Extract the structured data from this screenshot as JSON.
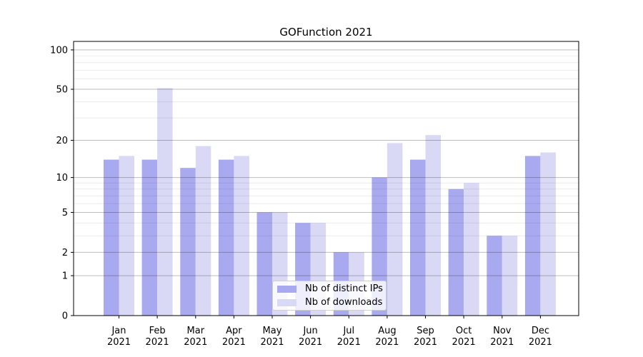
{
  "chart_data": {
    "type": "bar",
    "title": "GOFunction 2021",
    "categories": [
      {
        "month": "Jan",
        "year": "2021"
      },
      {
        "month": "Feb",
        "year": "2021"
      },
      {
        "month": "Mar",
        "year": "2021"
      },
      {
        "month": "Apr",
        "year": "2021"
      },
      {
        "month": "May",
        "year": "2021"
      },
      {
        "month": "Jun",
        "year": "2021"
      },
      {
        "month": "Jul",
        "year": "2021"
      },
      {
        "month": "Aug",
        "year": "2021"
      },
      {
        "month": "Sep",
        "year": "2021"
      },
      {
        "month": "Oct",
        "year": "2021"
      },
      {
        "month": "Nov",
        "year": "2021"
      },
      {
        "month": "Dec",
        "year": "2021"
      }
    ],
    "series": [
      {
        "name": "Nb of distinct IPs",
        "color": "#a9a9ef",
        "values": [
          14,
          14,
          12,
          14,
          5,
          4,
          2,
          10,
          14,
          8,
          3,
          15
        ]
      },
      {
        "name": "Nb of downloads",
        "color": "#d9d9f6",
        "values": [
          15,
          51,
          18,
          15,
          5,
          4,
          2,
          19,
          22,
          9,
          3,
          16
        ]
      }
    ],
    "y_scale": "log1p",
    "y_ticks": [
      0,
      1,
      2,
      5,
      10,
      20,
      50,
      100
    ],
    "y_minor_ticks": [
      3,
      4,
      6,
      7,
      8,
      9,
      30,
      40,
      60,
      70,
      80,
      90
    ],
    "ylim": [
      0,
      116
    ],
    "grid": "horizontal",
    "legend_position": "lower-center",
    "colors": {
      "background": "#ffffff",
      "axis": "#000000",
      "major_grid": "rgba(0,0,0,0.26)",
      "minor_grid": "rgba(0,0,0,0.08)"
    }
  }
}
